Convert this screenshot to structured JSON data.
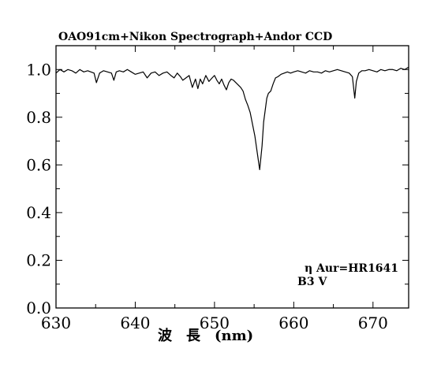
{
  "chart_data": {
    "type": "line",
    "title": "OAO91cm+Nikon Spectrograph+Andor CCD",
    "xlabel": "波　長　(nm)",
    "ylabel": "",
    "xlim": [
      630,
      674.5
    ],
    "ylim": [
      0.0,
      1.1
    ],
    "x_ticks": [
      "630",
      "640",
      "650",
      "660",
      "670"
    ],
    "y_ticks": [
      "0.0",
      "0.2",
      "0.4",
      "0.6",
      "0.8",
      "1.0"
    ],
    "grid": false,
    "legend": "none",
    "annotations": [
      "η Aur=HR1641",
      "B3 V"
    ],
    "line_color": "#000000",
    "series": [
      {
        "x": [
          630.0,
          630.5,
          631.0,
          631.5,
          632.0,
          632.5,
          633.0,
          633.5,
          634.0,
          634.4,
          634.8,
          635.1,
          635.5,
          636.0,
          636.5,
          637.0,
          637.3,
          637.6,
          638.0,
          638.5,
          639.0,
          639.5,
          640.0,
          640.5,
          641.0,
          641.5,
          642.0,
          642.5,
          643.0,
          643.5,
          644.0,
          644.5,
          644.9,
          645.3,
          645.7,
          646.0,
          646.4,
          646.8,
          647.2,
          647.6,
          647.9,
          648.2,
          648.5,
          648.9,
          649.3,
          649.7,
          650.0,
          650.3,
          650.6,
          650.9,
          651.2,
          651.5,
          651.8,
          652.1,
          652.4,
          652.7,
          653.0,
          653.3,
          653.6,
          653.9,
          654.2,
          654.5,
          654.8,
          655.1,
          655.4,
          655.7,
          656.0,
          656.2,
          656.4,
          656.6,
          656.8,
          657.1,
          657.4,
          657.7,
          658.0,
          658.4,
          658.8,
          659.2,
          659.6,
          660.0,
          660.5,
          661.0,
          661.5,
          662.0,
          662.5,
          663.0,
          663.5,
          664.0,
          664.5,
          665.0,
          665.5,
          666.0,
          666.5,
          667.0,
          667.4,
          667.7,
          667.9,
          668.2,
          668.6,
          669.0,
          669.5,
          670.0,
          670.5,
          671.0,
          671.5,
          672.0,
          672.5,
          673.0,
          673.5,
          674.0,
          674.5
        ],
        "y": [
          0.985,
          1.0,
          0.99,
          1.0,
          0.995,
          0.985,
          1.0,
          0.99,
          0.995,
          0.99,
          0.985,
          0.945,
          0.985,
          0.995,
          0.99,
          0.985,
          0.955,
          0.99,
          0.995,
          0.99,
          1.0,
          0.99,
          0.98,
          0.985,
          0.99,
          0.965,
          0.985,
          0.99,
          0.975,
          0.985,
          0.99,
          0.975,
          0.965,
          0.985,
          0.97,
          0.955,
          0.965,
          0.975,
          0.925,
          0.96,
          0.92,
          0.96,
          0.94,
          0.975,
          0.95,
          0.965,
          0.975,
          0.955,
          0.94,
          0.96,
          0.935,
          0.915,
          0.945,
          0.96,
          0.955,
          0.945,
          0.935,
          0.925,
          0.91,
          0.875,
          0.85,
          0.82,
          0.77,
          0.72,
          0.65,
          0.58,
          0.68,
          0.78,
          0.83,
          0.88,
          0.9,
          0.91,
          0.94,
          0.965,
          0.97,
          0.98,
          0.985,
          0.99,
          0.985,
          0.99,
          0.995,
          0.99,
          0.985,
          0.995,
          0.99,
          0.99,
          0.985,
          0.995,
          0.99,
          0.995,
          1.0,
          0.995,
          0.99,
          0.985,
          0.97,
          0.88,
          0.95,
          0.985,
          0.995,
          0.995,
          1.0,
          0.995,
          0.99,
          1.0,
          0.995,
          1.0,
          1.0,
          0.995,
          1.005,
          1.0,
          1.01
        ]
      }
    ]
  }
}
